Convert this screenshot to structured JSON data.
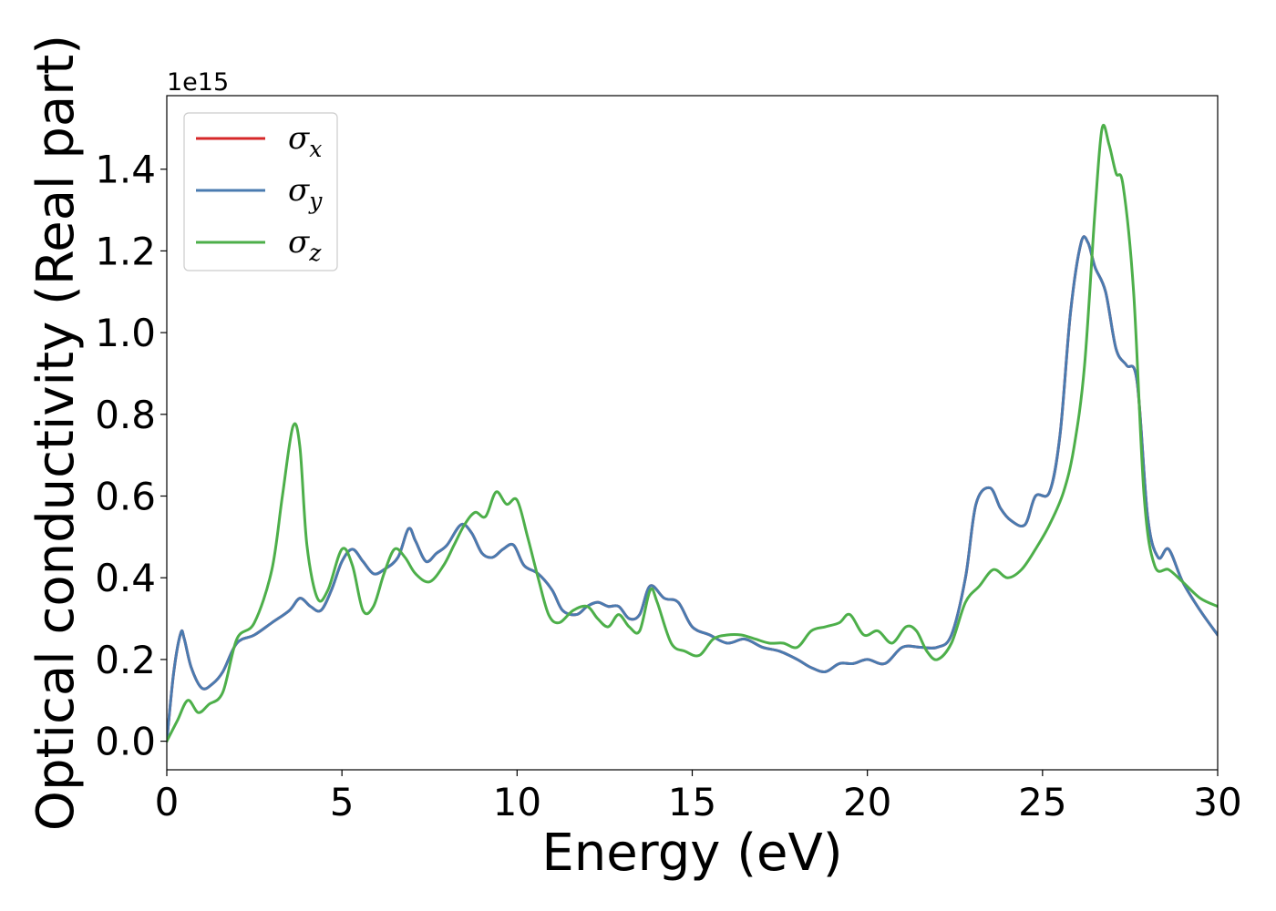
{
  "chart_data": {
    "type": "line",
    "title": "",
    "xlabel": "Energy (eV)",
    "ylabel": "Optical conductivity (Real part)",
    "y_offset_label": "1e15",
    "xlim": [
      0,
      30
    ],
    "ylim": [
      -0.07,
      1.58
    ],
    "xticks": [
      0,
      5,
      10,
      15,
      20,
      25,
      30
    ],
    "yticks": [
      0.0,
      0.2,
      0.4,
      0.6,
      0.8,
      1.0,
      1.2,
      1.4
    ],
    "grid": false,
    "legend_position": "top-left",
    "series": [
      {
        "name": "σx",
        "legend_symbol": "σ",
        "legend_sub": "x",
        "color": "#d62728",
        "x": [
          0,
          0.2,
          0.4,
          0.5,
          0.7,
          1.0,
          1.3,
          1.6,
          2.0,
          2.5,
          3.0,
          3.5,
          3.8,
          4.1,
          4.4,
          4.7,
          5.0,
          5.3,
          5.6,
          5.9,
          6.2,
          6.6,
          6.9,
          7.1,
          7.4,
          7.7,
          8.0,
          8.4,
          8.7,
          9.0,
          9.3,
          9.6,
          9.9,
          10.2,
          10.6,
          11.0,
          11.3,
          11.7,
          12.0,
          12.3,
          12.6,
          12.9,
          13.2,
          13.5,
          13.8,
          14.2,
          14.6,
          15.0,
          15.5,
          16.0,
          16.5,
          17.0,
          17.5,
          18.0,
          18.4,
          18.8,
          19.2,
          19.6,
          20.0,
          20.5,
          21.0,
          21.5,
          22.0,
          22.4,
          22.8,
          23.1,
          23.5,
          23.8,
          24.1,
          24.5,
          24.8,
          25.2,
          25.5,
          25.8,
          26.1,
          26.3,
          26.5,
          26.8,
          27.1,
          27.4,
          27.7,
          28.0,
          28.3,
          28.6,
          29.0,
          29.5,
          30.0
        ],
        "values": [
          0.0,
          0.17,
          0.265,
          0.25,
          0.18,
          0.13,
          0.14,
          0.17,
          0.24,
          0.26,
          0.29,
          0.32,
          0.35,
          0.33,
          0.32,
          0.37,
          0.44,
          0.47,
          0.44,
          0.41,
          0.42,
          0.45,
          0.52,
          0.49,
          0.44,
          0.46,
          0.48,
          0.53,
          0.51,
          0.46,
          0.45,
          0.47,
          0.48,
          0.43,
          0.41,
          0.37,
          0.32,
          0.31,
          0.33,
          0.34,
          0.33,
          0.33,
          0.3,
          0.31,
          0.38,
          0.35,
          0.34,
          0.28,
          0.26,
          0.24,
          0.25,
          0.23,
          0.22,
          0.2,
          0.18,
          0.17,
          0.19,
          0.19,
          0.2,
          0.19,
          0.23,
          0.23,
          0.23,
          0.26,
          0.4,
          0.58,
          0.62,
          0.57,
          0.54,
          0.53,
          0.6,
          0.61,
          0.75,
          1.05,
          1.22,
          1.22,
          1.16,
          1.1,
          0.96,
          0.92,
          0.88,
          0.55,
          0.45,
          0.47,
          0.39,
          0.32,
          0.26
        ]
      },
      {
        "name": "σy",
        "legend_symbol": "σ",
        "legend_sub": "y",
        "color": "#4a7bb0",
        "x": [
          0,
          0.2,
          0.4,
          0.5,
          0.7,
          1.0,
          1.3,
          1.6,
          2.0,
          2.5,
          3.0,
          3.5,
          3.8,
          4.1,
          4.4,
          4.7,
          5.0,
          5.3,
          5.6,
          5.9,
          6.2,
          6.6,
          6.9,
          7.1,
          7.4,
          7.7,
          8.0,
          8.4,
          8.7,
          9.0,
          9.3,
          9.6,
          9.9,
          10.2,
          10.6,
          11.0,
          11.3,
          11.7,
          12.0,
          12.3,
          12.6,
          12.9,
          13.2,
          13.5,
          13.8,
          14.2,
          14.6,
          15.0,
          15.5,
          16.0,
          16.5,
          17.0,
          17.5,
          18.0,
          18.4,
          18.8,
          19.2,
          19.6,
          20.0,
          20.5,
          21.0,
          21.5,
          22.0,
          22.4,
          22.8,
          23.1,
          23.5,
          23.8,
          24.1,
          24.5,
          24.8,
          25.2,
          25.5,
          25.8,
          26.1,
          26.3,
          26.5,
          26.8,
          27.1,
          27.4,
          27.7,
          28.0,
          28.3,
          28.6,
          29.0,
          29.5,
          30.0
        ],
        "values": [
          0.0,
          0.17,
          0.265,
          0.25,
          0.18,
          0.13,
          0.14,
          0.17,
          0.24,
          0.26,
          0.29,
          0.32,
          0.35,
          0.33,
          0.32,
          0.37,
          0.44,
          0.47,
          0.44,
          0.41,
          0.42,
          0.45,
          0.52,
          0.49,
          0.44,
          0.46,
          0.48,
          0.53,
          0.51,
          0.46,
          0.45,
          0.47,
          0.48,
          0.43,
          0.41,
          0.37,
          0.32,
          0.31,
          0.33,
          0.34,
          0.33,
          0.33,
          0.3,
          0.31,
          0.38,
          0.35,
          0.34,
          0.28,
          0.26,
          0.24,
          0.25,
          0.23,
          0.22,
          0.2,
          0.18,
          0.17,
          0.19,
          0.19,
          0.2,
          0.19,
          0.23,
          0.23,
          0.23,
          0.26,
          0.4,
          0.58,
          0.62,
          0.57,
          0.54,
          0.53,
          0.6,
          0.61,
          0.75,
          1.05,
          1.22,
          1.22,
          1.16,
          1.1,
          0.96,
          0.92,
          0.88,
          0.55,
          0.45,
          0.47,
          0.39,
          0.32,
          0.26
        ]
      },
      {
        "name": "σz",
        "legend_symbol": "σ",
        "legend_sub": "z",
        "color": "#4daf4a",
        "x": [
          0,
          0.3,
          0.6,
          0.9,
          1.2,
          1.6,
          2.0,
          2.5,
          3.0,
          3.3,
          3.6,
          3.8,
          4.0,
          4.3,
          4.6,
          5.0,
          5.3,
          5.6,
          5.9,
          6.2,
          6.5,
          6.8,
          7.1,
          7.5,
          7.9,
          8.2,
          8.5,
          8.8,
          9.1,
          9.4,
          9.7,
          10.0,
          10.3,
          10.6,
          10.9,
          11.2,
          11.6,
          12.0,
          12.3,
          12.6,
          12.9,
          13.2,
          13.5,
          13.8,
          14.0,
          14.4,
          14.8,
          15.2,
          15.6,
          16.0,
          16.4,
          16.8,
          17.2,
          17.6,
          18.0,
          18.4,
          18.8,
          19.2,
          19.5,
          19.9,
          20.3,
          20.7,
          21.1,
          21.4,
          21.7,
          22.0,
          22.4,
          22.8,
          23.2,
          23.6,
          24.0,
          24.4,
          24.8,
          25.2,
          25.6,
          25.9,
          26.2,
          26.5,
          26.7,
          26.9,
          27.1,
          27.3,
          27.6,
          27.9,
          28.2,
          28.6,
          29.0,
          29.5,
          30.0
        ],
        "values": [
          0.0,
          0.05,
          0.1,
          0.07,
          0.09,
          0.12,
          0.25,
          0.29,
          0.42,
          0.6,
          0.77,
          0.72,
          0.48,
          0.35,
          0.37,
          0.47,
          0.43,
          0.32,
          0.33,
          0.41,
          0.47,
          0.45,
          0.41,
          0.39,
          0.43,
          0.48,
          0.53,
          0.56,
          0.55,
          0.61,
          0.58,
          0.59,
          0.5,
          0.4,
          0.31,
          0.29,
          0.32,
          0.33,
          0.3,
          0.28,
          0.31,
          0.28,
          0.27,
          0.37,
          0.34,
          0.24,
          0.22,
          0.21,
          0.25,
          0.26,
          0.26,
          0.25,
          0.24,
          0.24,
          0.23,
          0.27,
          0.28,
          0.29,
          0.31,
          0.26,
          0.27,
          0.24,
          0.28,
          0.27,
          0.22,
          0.2,
          0.24,
          0.34,
          0.38,
          0.42,
          0.4,
          0.42,
          0.47,
          0.53,
          0.61,
          0.72,
          0.92,
          1.3,
          1.5,
          1.46,
          1.39,
          1.36,
          1.1,
          0.6,
          0.43,
          0.42,
          0.39,
          0.35,
          0.33
        ]
      }
    ]
  }
}
